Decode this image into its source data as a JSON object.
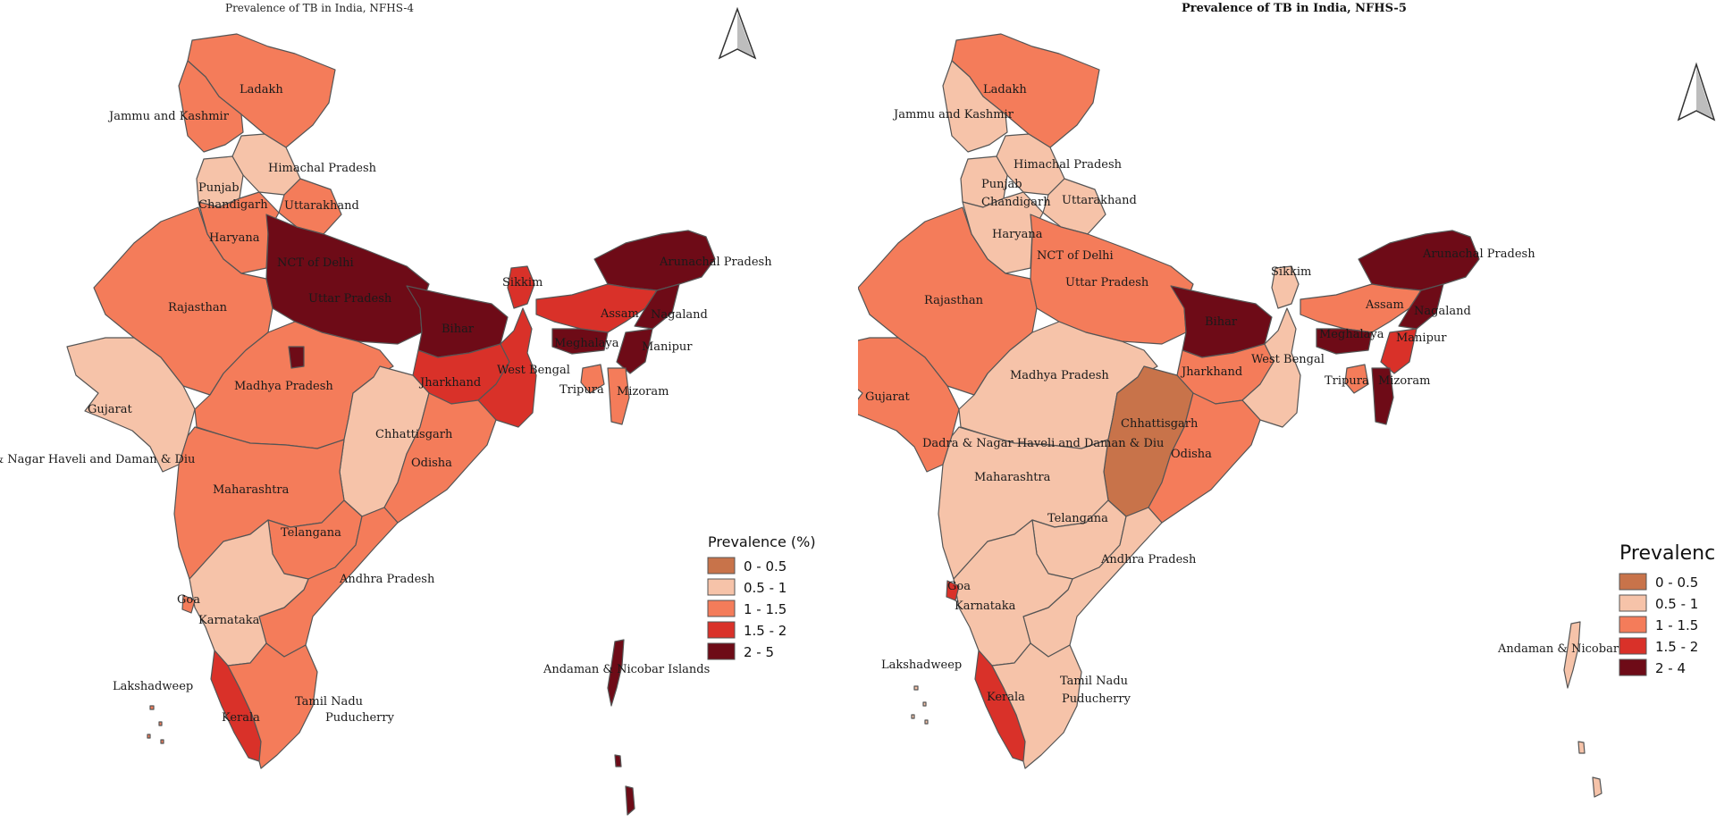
{
  "palette": {
    "c0": "#C8734A",
    "c1": "#F6C3A9",
    "c2": "#F47C5A",
    "c3": "#D93129",
    "c4": "#6E0B17"
  },
  "left": {
    "title": "Prevalence of TB in India, NFHS-4",
    "legend_title": "Prevalence (%)",
    "legend": [
      {
        "label": "0 - 0.5",
        "color": "#C8734A"
      },
      {
        "label": "0.5 - 1",
        "color": "#F6C3A9"
      },
      {
        "label": "1 - 1.5",
        "color": "#F47C5A"
      },
      {
        "label": "1.5 - 2",
        "color": "#D93129"
      },
      {
        "label": "2 - 5",
        "color": "#6E0B17"
      }
    ],
    "labels": {
      "ladakh": "Ladakh",
      "jk": "Jammu and Kashmir",
      "hp": "Himachal Pradesh",
      "punjab": "Punjab",
      "chandigarh": "Chandigarh",
      "uttarakhand": "Uttarakhand",
      "haryana": "Haryana",
      "delhi": "NCT of Delhi",
      "up": "Uttar Pradesh",
      "rajasthan": "Rajasthan",
      "bihar": "Bihar",
      "sikkim": "Sikkim",
      "arunachal": "Arunachal Pradesh",
      "assam": "Assam",
      "nagaland": "Nagaland",
      "meghalaya": "Meghalaya",
      "manipur": "Manipur",
      "tripura": "Tripura",
      "mizoram": "Mizoram",
      "wb": "West Bengal",
      "jharkhand": "Jharkhand",
      "gujarat": "Gujarat",
      "mp": "Madhya Pradesh",
      "dnh": "Dadra & Nagar Haveli and Daman & Diu",
      "chhattisgarh": "Chhattisgarh",
      "odisha": "Odisha",
      "maharashtra": "Maharashtra",
      "telangana": "Telangana",
      "ap": "Andhra Pradesh",
      "goa": "Goa",
      "karnataka": "Karnataka",
      "lakshadweep": "Lakshadweep",
      "andaman": "Andaman & Nicobar Islands",
      "tn": "Tamil Nadu",
      "puducherry": "Puducherry",
      "kerala": "Kerala"
    },
    "fill": {
      "ladakh": "c2",
      "jk": "c2",
      "hp": "c1",
      "punjab": "c1",
      "uttarakhand": "c2",
      "haryana": "c2",
      "rajasthan": "c2",
      "gujarat": "c1",
      "up": "c4",
      "bihar": "c4",
      "mp": "c2",
      "maharashtra": "c2",
      "chhattisgarh": "c1",
      "jharkhand": "c3",
      "wb": "c3",
      "odisha": "c2",
      "telangana": "c2",
      "ap": "c2",
      "karnataka": "c1",
      "kerala": "c3",
      "tn": "c2",
      "goa": "c2",
      "sikkim": "c3",
      "arunachal": "c4",
      "assam": "c3",
      "nagaland": "c4",
      "manipur": "c4",
      "meghalaya": "c4",
      "tripura": "c2",
      "mizoram": "c2",
      "andaman": "c4",
      "lakshadweep": "c2"
    }
  },
  "right": {
    "title": "Prevalence of TB in India, NFHS-5",
    "legend_title": "Prevalence",
    "legend": [
      {
        "label": "0 - 0.5",
        "color": "#C8734A"
      },
      {
        "label": "0.5 - 1",
        "color": "#F6C3A9"
      },
      {
        "label": "1 - 1.5",
        "color": "#F47C5A"
      },
      {
        "label": "1.5 - 2",
        "color": "#D93129"
      },
      {
        "label": "2 - 4",
        "color": "#6E0B17"
      }
    ],
    "labels": {
      "ladakh": "Ladakh",
      "jk": "Jammu and Kashmir",
      "hp": "Himachal Pradesh",
      "punjab": "Punjab",
      "chandigarh": "Chandigarh",
      "uttarakhand": "Uttarakhand",
      "haryana": "Haryana",
      "delhi": "NCT of Delhi",
      "up": "Uttar Pradesh",
      "rajasthan": "Rajasthan",
      "bihar": "Bihar",
      "sikkim": "Sikkim",
      "arunachal": "Arunachal Pradesh",
      "assam": "Assam",
      "nagaland": "Nagaland",
      "meghalaya": "Meghalaya",
      "manipur": "Manipur",
      "tripura": "Tripura",
      "mizoram": "Mizoram",
      "wb": "West Bengal",
      "jharkhand": "Jharkhand",
      "gujarat": "Gujarat",
      "mp": "Madhya Pradesh",
      "dnh": "Dadra & Nagar Haveli and Daman & Diu",
      "chhattisgarh": "Chhattisgarh",
      "odisha": "Odisha",
      "maharashtra": "Maharashtra",
      "telangana": "Telangana",
      "ap": "Andhra Pradesh",
      "goa": "Goa",
      "karnataka": "Karnataka",
      "lakshadweep": "Lakshadweep",
      "andaman": "Andaman & Nicobar",
      "tn": "Tamil Nadu",
      "puducherry": "Puducherry",
      "kerala": "Kerala"
    },
    "fill": {
      "ladakh": "c2",
      "jk": "c1",
      "hp": "c1",
      "punjab": "c1",
      "uttarakhand": "c1",
      "haryana": "c1",
      "rajasthan": "c2",
      "gujarat": "c2",
      "up": "c2",
      "bihar": "c4",
      "mp": "c1",
      "maharashtra": "c1",
      "chhattisgarh": "c0",
      "jharkhand": "c2",
      "wb": "c1",
      "odisha": "c2",
      "telangana": "c1",
      "ap": "c1",
      "karnataka": "c1",
      "kerala": "c3",
      "tn": "c1",
      "goa": "c3",
      "sikkim": "c1",
      "arunachal": "c4",
      "assam": "c2",
      "nagaland": "c4",
      "manipur": "c3",
      "meghalaya": "c4",
      "tripura": "c2",
      "mizoram": "c4",
      "andaman": "c1",
      "lakshadweep": "c1"
    }
  }
}
